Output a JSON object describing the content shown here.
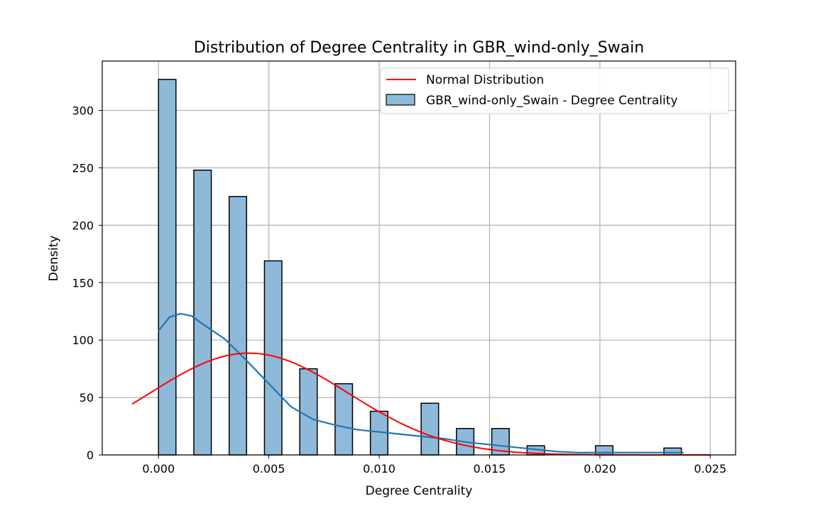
{
  "chart_data": {
    "type": "bar",
    "title": "Distribution of Degree Centrality in GBR_wind-only_Swain",
    "xlabel": "Degree Centrality",
    "ylabel": "Density",
    "xlim": [
      -0.00255,
      0.02615
    ],
    "ylim": [
      0,
      343
    ],
    "grid": true,
    "legend_position": "top-right",
    "x_ticks": [
      0.0,
      0.005,
      0.01,
      0.015,
      0.02,
      0.025
    ],
    "x_tick_labels": [
      "0.000",
      "0.005",
      "0.010",
      "0.015",
      "0.020",
      "0.025"
    ],
    "y_ticks": [
      0,
      50,
      100,
      150,
      200,
      250,
      300
    ],
    "y_tick_labels": [
      "0",
      "50",
      "100",
      "150",
      "200",
      "250",
      "300"
    ],
    "histogram": {
      "name": "GBR_wind-only_Swain - Degree Centrality",
      "color": "#8fb9d9",
      "edge_color": "#000000",
      "bin_width": 0.00079,
      "bins": [
        {
          "x0": 0.0,
          "value": 327
        },
        {
          "x0": 0.0016,
          "value": 248
        },
        {
          "x0": 0.0032,
          "value": 225
        },
        {
          "x0": 0.0048,
          "value": 169
        },
        {
          "x0": 0.0064,
          "value": 75
        },
        {
          "x0": 0.008,
          "value": 62
        },
        {
          "x0": 0.0096,
          "value": 38
        },
        {
          "x0": 0.0119,
          "value": 45
        },
        {
          "x0": 0.0135,
          "value": 23
        },
        {
          "x0": 0.0151,
          "value": 23
        },
        {
          "x0": 0.0167,
          "value": 8
        },
        {
          "x0": 0.0198,
          "value": 8
        },
        {
          "x0": 0.0229,
          "value": 6
        }
      ]
    },
    "kde": {
      "color": "#1f77b4",
      "x": [
        0.0,
        0.0005,
        0.001,
        0.0015,
        0.002,
        0.003,
        0.004,
        0.005,
        0.006,
        0.007,
        0.008,
        0.009,
        0.01,
        0.011,
        0.012,
        0.013,
        0.014,
        0.015,
        0.016,
        0.017,
        0.018,
        0.019,
        0.02,
        0.021,
        0.022,
        0.023,
        0.0238
      ],
      "y": [
        108,
        120,
        123,
        121,
        114,
        101,
        82,
        62,
        42,
        31,
        26,
        22,
        20,
        18,
        16,
        14,
        11,
        9,
        7,
        5,
        3,
        2,
        2,
        2,
        2,
        2,
        2
      ]
    },
    "normal": {
      "name": "Normal Distribution",
      "color": "#ff0000",
      "mean": 0.0041,
      "std": 0.0045,
      "x_range": [
        -0.0012,
        0.025
      ]
    },
    "series": [
      {
        "name": "Normal Distribution"
      },
      {
        "name": "GBR_wind-only_Swain - Degree Centrality"
      }
    ]
  }
}
